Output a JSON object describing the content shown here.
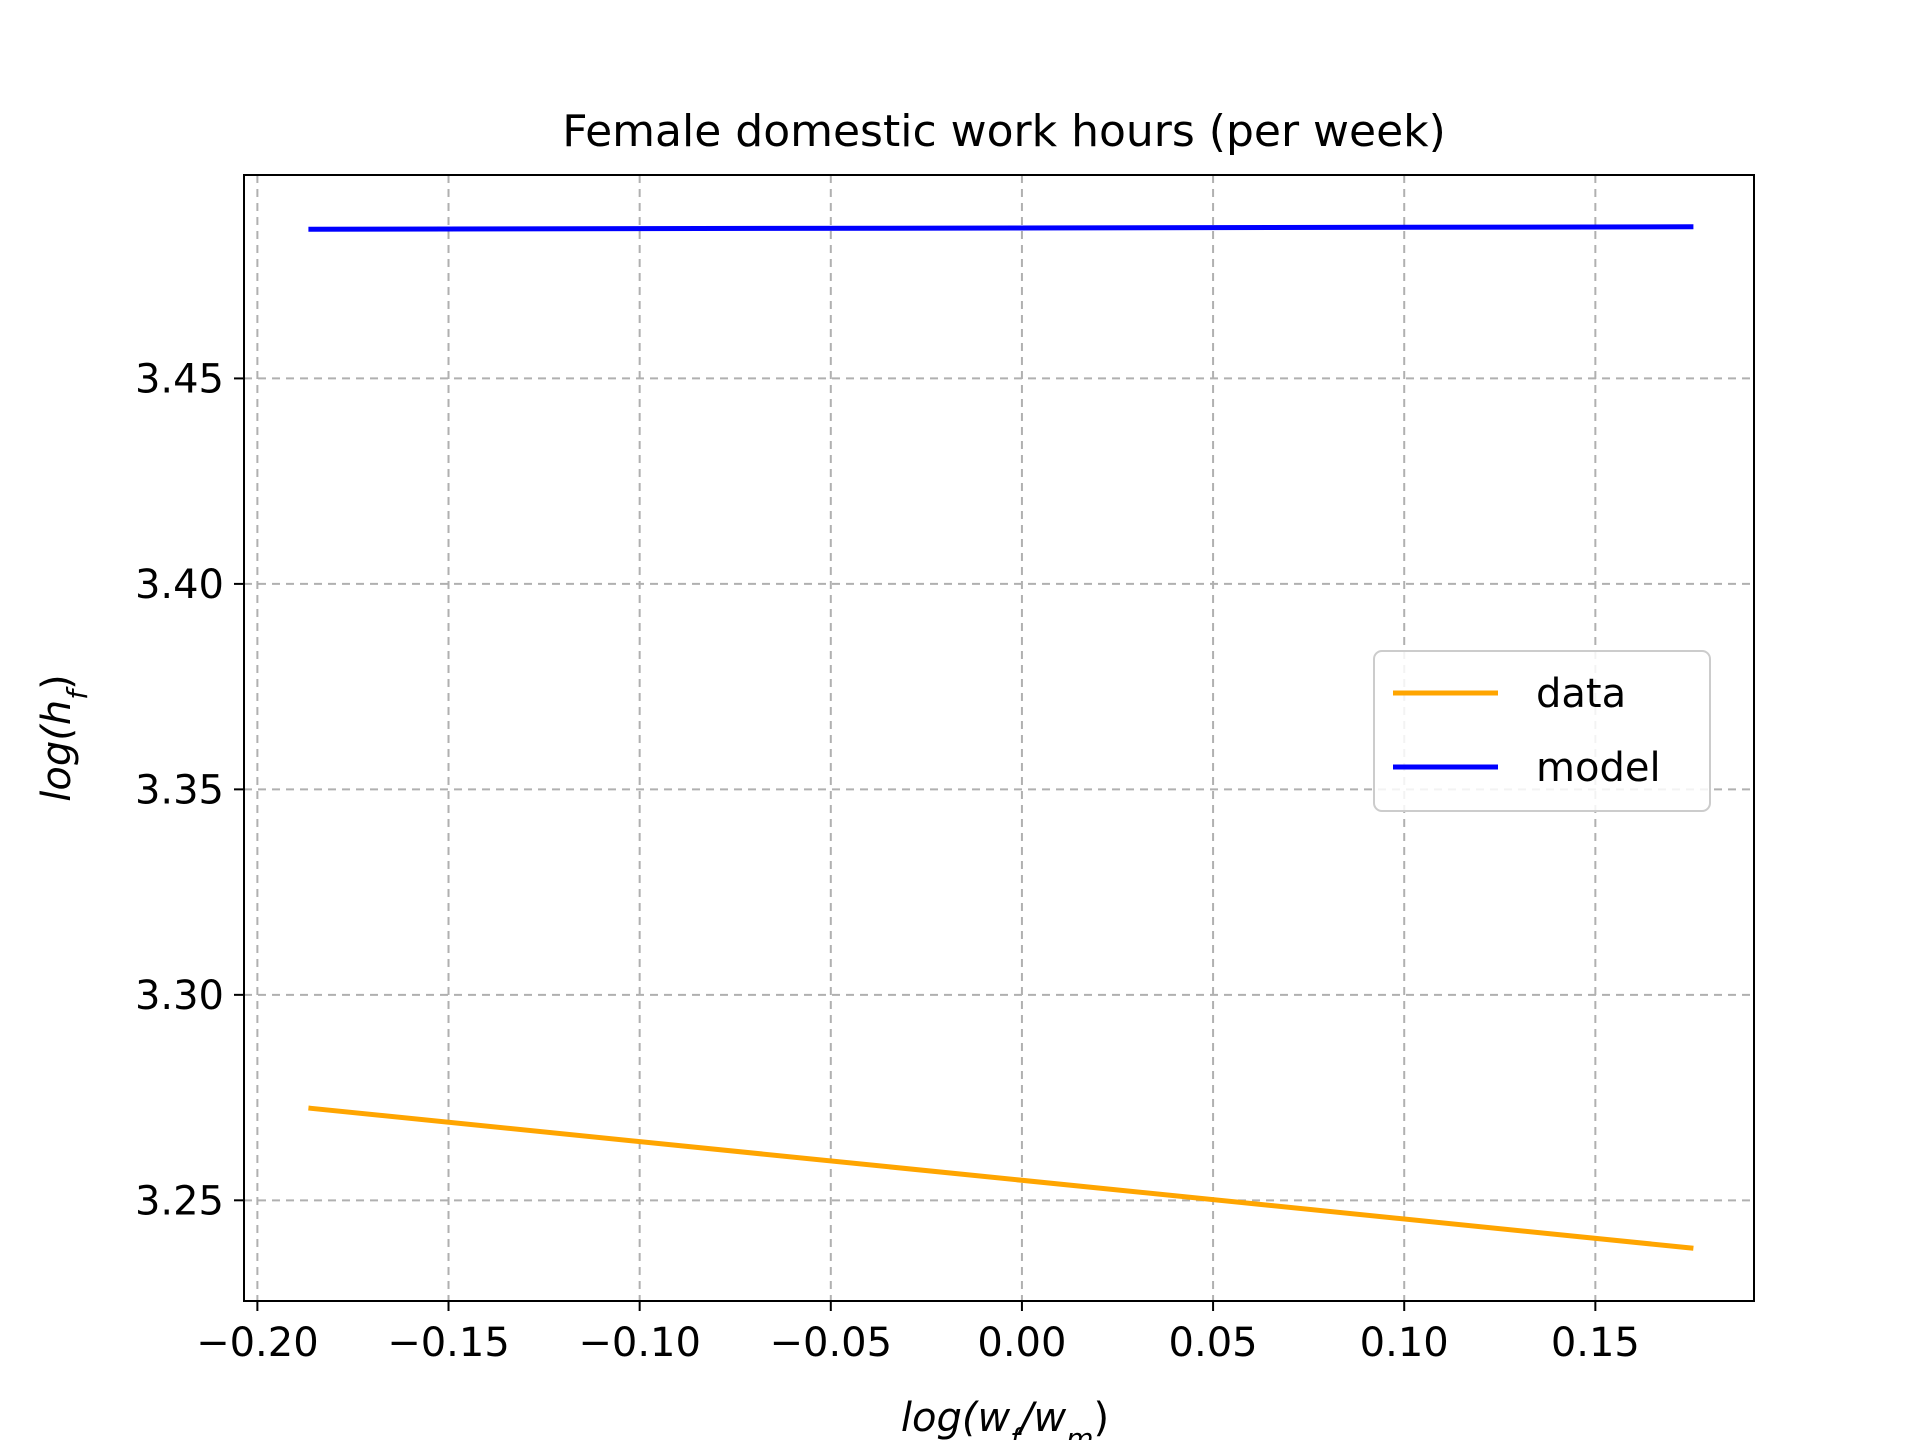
{
  "chart_data": {
    "type": "line",
    "title": "Female domestic work hours (per week)",
    "xlabel": {
      "parts": [
        {
          "text": "log(w",
          "style": "italic"
        },
        {
          "text": "f",
          "style": "sub"
        },
        {
          "text": "/w",
          "style": "italic"
        },
        {
          "text": "m",
          "style": "sub"
        },
        {
          "text": ")",
          "style": "normal"
        }
      ]
    },
    "ylabel": {
      "parts": [
        {
          "text": "log(h",
          "style": "italic"
        },
        {
          "text": "f",
          "style": "sub"
        },
        {
          "text": ")",
          "style": "normal"
        }
      ]
    },
    "xlim": [
      -0.2035,
      0.1915
    ],
    "ylim": [
      3.2255,
      3.4995
    ],
    "xticks": [
      -0.2,
      -0.15,
      -0.1,
      -0.05,
      0.0,
      0.05,
      0.1,
      0.15
    ],
    "xtick_labels": [
      "−0.20",
      "−0.15",
      "−0.10",
      "−0.05",
      "0.00",
      "0.05",
      "0.10",
      "0.15"
    ],
    "yticks": [
      3.25,
      3.3,
      3.35,
      3.4,
      3.45
    ],
    "ytick_labels": [
      "3.25",
      "3.30",
      "3.35",
      "3.40",
      "3.45"
    ],
    "grid": true,
    "legend_position": "center-right",
    "series": [
      {
        "name": "data",
        "color": "#FFA500",
        "x": [
          -0.186,
          0.175
        ],
        "y": [
          3.2724,
          3.2384
        ]
      },
      {
        "name": "model",
        "color": "#0000FF",
        "x": [
          -0.186,
          0.175
        ],
        "y": [
          3.4863,
          3.4869
        ]
      }
    ]
  }
}
